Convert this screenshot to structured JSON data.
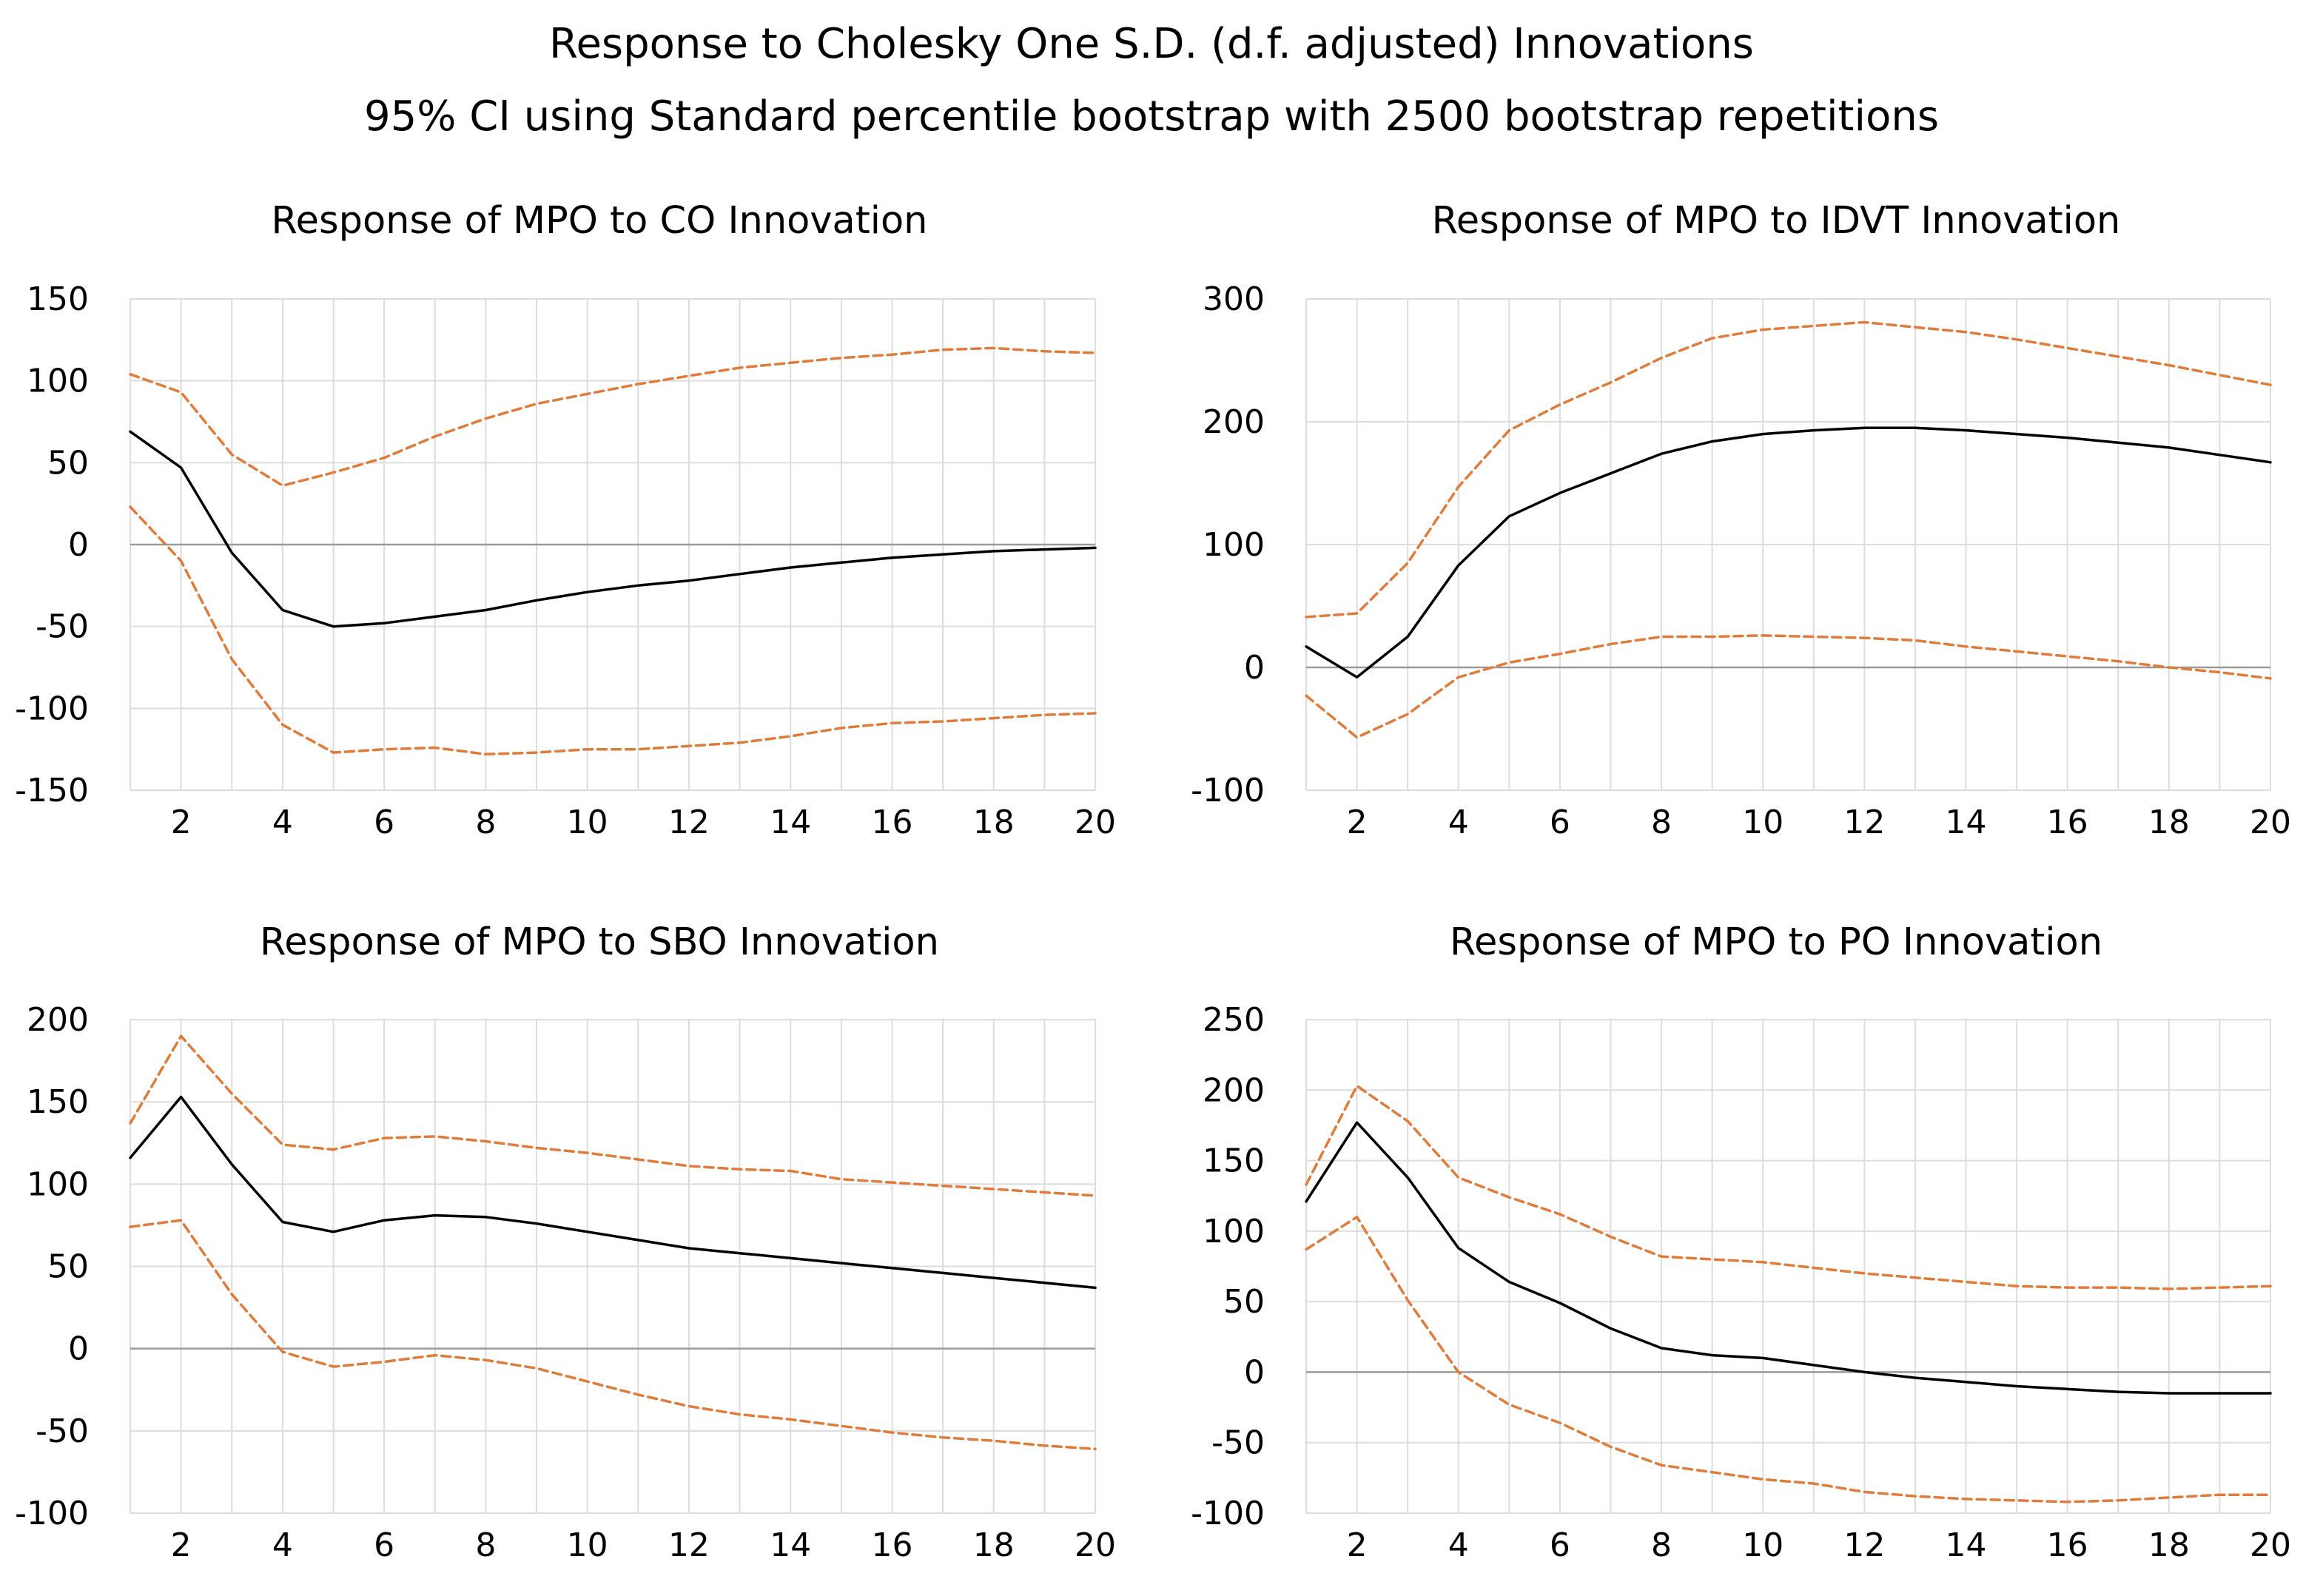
{
  "title": "Response to Cholesky One S.D. (d.f. adjusted) Innovations",
  "subtitle": "95% CI using Standard percentile bootstrap with 2500 bootstrap repetitions",
  "colors": {
    "response": "#000000",
    "ci": "#E07B39",
    "grid": "#DDDDDD",
    "zero": "#9A9A9A"
  },
  "chart_data": [
    {
      "type": "line",
      "title": "Response of MPO to CO Innovation",
      "xlim": [
        1,
        20
      ],
      "ylim": [
        -150,
        150
      ],
      "xticks": [
        2,
        4,
        6,
        8,
        10,
        12,
        14,
        16,
        18,
        20
      ],
      "yticks": [
        -150,
        -100,
        -50,
        0,
        50,
        100,
        150
      ],
      "x": [
        1,
        2,
        3,
        4,
        5,
        6,
        7,
        8,
        9,
        10,
        11,
        12,
        13,
        14,
        15,
        16,
        17,
        18,
        19,
        20
      ],
      "series": [
        {
          "name": "response",
          "style": "solid",
          "values": [
            69,
            47,
            -5,
            -40,
            -50,
            -48,
            -44,
            -40,
            -34,
            -29,
            -25,
            -22,
            -18,
            -14,
            -11,
            -8,
            -6,
            -4,
            -3,
            -2
          ]
        },
        {
          "name": "upper",
          "style": "dashed",
          "values": [
            104,
            93,
            55,
            36,
            44,
            53,
            66,
            77,
            86,
            92,
            98,
            103,
            108,
            111,
            114,
            116,
            119,
            120,
            118,
            117
          ]
        },
        {
          "name": "lower",
          "style": "dashed",
          "values": [
            23,
            -10,
            -70,
            -110,
            -127,
            -125,
            -124,
            -128,
            -127,
            -125,
            -125,
            -123,
            -121,
            -117,
            -112,
            -109,
            -108,
            -106,
            -104,
            -103
          ]
        }
      ]
    },
    {
      "type": "line",
      "title": "Response of MPO to IDVT Innovation",
      "xlim": [
        1,
        20
      ],
      "ylim": [
        -100,
        300
      ],
      "xticks": [
        2,
        4,
        6,
        8,
        10,
        12,
        14,
        16,
        18,
        20
      ],
      "yticks": [
        -100,
        0,
        100,
        200,
        300
      ],
      "x": [
        1,
        2,
        3,
        4,
        5,
        6,
        7,
        8,
        9,
        10,
        11,
        12,
        13,
        14,
        15,
        16,
        17,
        18,
        19,
        20
      ],
      "series": [
        {
          "name": "response",
          "style": "solid",
          "values": [
            17,
            -8,
            25,
            83,
            123,
            142,
            158,
            174,
            184,
            190,
            193,
            195,
            195,
            193,
            190,
            187,
            183,
            179,
            173,
            167
          ]
        },
        {
          "name": "upper",
          "style": "dashed",
          "values": [
            41,
            44,
            85,
            147,
            193,
            214,
            232,
            252,
            268,
            275,
            278,
            281,
            277,
            273,
            267,
            260,
            253,
            246,
            238,
            230
          ]
        },
        {
          "name": "lower",
          "style": "dashed",
          "values": [
            -23,
            -57,
            -38,
            -8,
            4,
            11,
            19,
            25,
            25,
            26,
            25,
            24,
            22,
            17,
            13,
            9,
            5,
            0,
            -4,
            -9
          ]
        }
      ]
    },
    {
      "type": "line",
      "title": "Response of MPO to SBO Innovation",
      "xlim": [
        1,
        20
      ],
      "ylim": [
        -100,
        200
      ],
      "xticks": [
        2,
        4,
        6,
        8,
        10,
        12,
        14,
        16,
        18,
        20
      ],
      "yticks": [
        -100,
        -50,
        0,
        50,
        100,
        150,
        200
      ],
      "x": [
        1,
        2,
        3,
        4,
        5,
        6,
        7,
        8,
        9,
        10,
        11,
        12,
        13,
        14,
        15,
        16,
        17,
        18,
        19,
        20
      ],
      "series": [
        {
          "name": "response",
          "style": "solid",
          "values": [
            116,
            153,
            112,
            77,
            71,
            78,
            81,
            80,
            76,
            71,
            66,
            61,
            58,
            55,
            52,
            49,
            46,
            43,
            40,
            37
          ]
        },
        {
          "name": "upper",
          "style": "dashed",
          "values": [
            137,
            190,
            155,
            124,
            121,
            128,
            129,
            126,
            122,
            119,
            115,
            111,
            109,
            108,
            103,
            101,
            99,
            97,
            95,
            93
          ]
        },
        {
          "name": "lower",
          "style": "dashed",
          "values": [
            74,
            78,
            33,
            -2,
            -11,
            -8,
            -4,
            -7,
            -12,
            -20,
            -28,
            -35,
            -40,
            -43,
            -47,
            -51,
            -54,
            -56,
            -59,
            -61
          ]
        }
      ]
    },
    {
      "type": "line",
      "title": "Response of MPO to PO Innovation",
      "xlim": [
        1,
        20
      ],
      "ylim": [
        -100,
        250
      ],
      "xticks": [
        2,
        4,
        6,
        8,
        10,
        12,
        14,
        16,
        18,
        20
      ],
      "yticks": [
        -100,
        -50,
        0,
        50,
        100,
        150,
        200,
        250
      ],
      "x": [
        1,
        2,
        3,
        4,
        5,
        6,
        7,
        8,
        9,
        10,
        11,
        12,
        13,
        14,
        15,
        16,
        17,
        18,
        19,
        20
      ],
      "series": [
        {
          "name": "response",
          "style": "solid",
          "values": [
            121,
            177,
            138,
            88,
            64,
            49,
            31,
            17,
            12,
            10,
            5,
            0,
            -4,
            -7,
            -10,
            -12,
            -14,
            -15,
            -15,
            -15
          ]
        },
        {
          "name": "upper",
          "style": "dashed",
          "values": [
            133,
            203,
            178,
            138,
            124,
            112,
            96,
            82,
            80,
            78,
            74,
            70,
            67,
            64,
            61,
            60,
            60,
            59,
            60,
            61
          ]
        },
        {
          "name": "lower",
          "style": "dashed",
          "values": [
            87,
            110,
            51,
            0,
            -23,
            -36,
            -53,
            -66,
            -71,
            -76,
            -79,
            -85,
            -88,
            -90,
            -91,
            -92,
            -91,
            -89,
            -87,
            -87
          ]
        }
      ]
    }
  ]
}
